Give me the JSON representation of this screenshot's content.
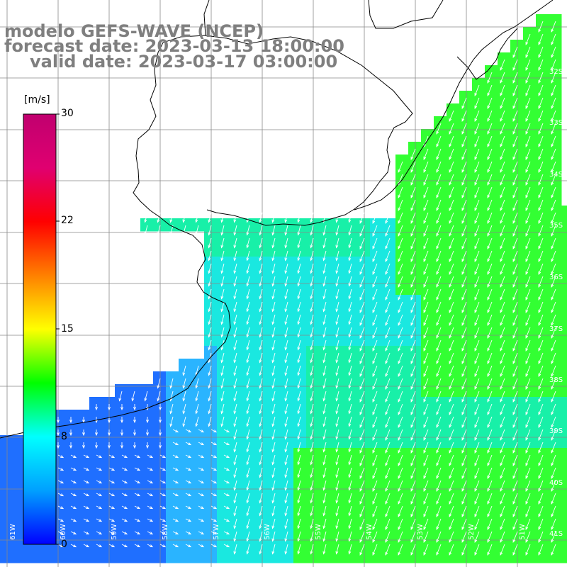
{
  "title": {
    "line1": "modelo GEFS-WAVE (NCEP)",
    "line2": "forecast date: 2023-03-13 18:00:00",
    "line3": "valid date: 2023-03-17 03:00:00"
  },
  "colorbar": {
    "unit": "[m/s]",
    "ticks": [
      "30",
      "22",
      "15",
      "8",
      "0"
    ],
    "stops": [
      "#0000ff",
      "#00a0ff",
      "#00ffff",
      "#00ff00",
      "#ffff00",
      "#ff8000",
      "#ff0000",
      "#e00070",
      "#c0006f"
    ]
  },
  "lat_labels": [
    "32S",
    "33S",
    "34S",
    "35S",
    "36S",
    "37S",
    "38S",
    "39S",
    "40S",
    "41S"
  ],
  "lon_labels": [
    "61W",
    "60W",
    "59W",
    "58W",
    "57W",
    "56W",
    "55W",
    "54W",
    "53W",
    "52W",
    "51W"
  ],
  "wind_colors": {
    "blue": "#1f6fff",
    "light_blue": "#2ab4ff",
    "cyan": "#1ae8e0",
    "green_cyan": "#18f0a8",
    "green": "#33ff33"
  }
}
